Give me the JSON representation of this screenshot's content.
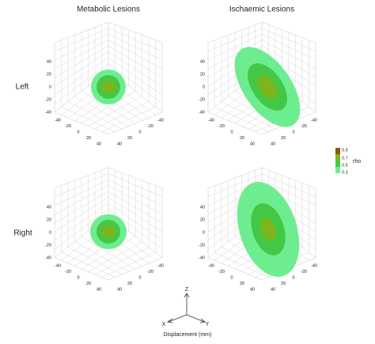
{
  "column_titles": [
    "Metabolic Lesions",
    "Ischaemic Lesions"
  ],
  "row_labels": [
    "Left",
    "Right"
  ],
  "axis_ticks": {
    "z": [
      "40",
      "20",
      "0",
      "-20",
      "-40"
    ],
    "x": [
      "-40",
      "-20",
      "0",
      "20",
      "40"
    ],
    "y": [
      "40",
      "20",
      "0",
      "-20",
      "-40"
    ]
  },
  "colorbar": {
    "title": "rho",
    "ticks": [
      "0.9",
      "0.7",
      "0.5",
      "0.3"
    ]
  },
  "axes_key": {
    "z": "Z",
    "x": "X",
    "y": "Y"
  },
  "xlabel": "Displacement (mm)"
}
